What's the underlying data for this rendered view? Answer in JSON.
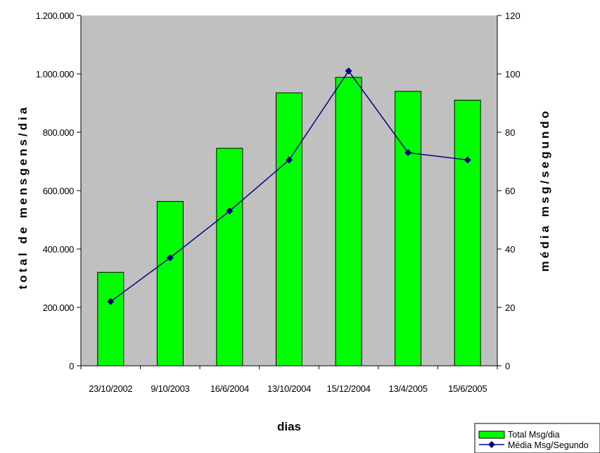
{
  "chart_data": {
    "type": "bar",
    "categories": [
      "23/10/2002",
      "9/10/2003",
      "16/6/2004",
      "13/10/2004",
      "15/12/2004",
      "13/4/2005",
      "15/6/2005"
    ],
    "series": [
      {
        "name": "Total Msg/dia",
        "type": "bar",
        "axis": "left",
        "color": "#00ff00",
        "values": [
          320000,
          563000,
          745000,
          935000,
          988000,
          940000,
          910000
        ]
      },
      {
        "name": "Média Msg/Segundo",
        "type": "line",
        "axis": "right",
        "color": "#000080",
        "values": [
          22,
          37,
          53,
          70.5,
          101,
          73,
          70.5
        ]
      }
    ],
    "xlabel": "dias",
    "ylabel": "total de mensgens/dia",
    "y2label": "média msg/segundo",
    "ylim": [
      0,
      1200000
    ],
    "y2lim": [
      0,
      120
    ],
    "yticks": [
      "0",
      "200.000",
      "400.000",
      "600.000",
      "800.000",
      "1.000.000",
      "1.200.000"
    ],
    "y2ticks": [
      "0",
      "20",
      "40",
      "60",
      "80",
      "100",
      "120"
    ],
    "plot_background": "#c0c0c0",
    "grid": false,
    "legend_position": "bottom-right"
  }
}
